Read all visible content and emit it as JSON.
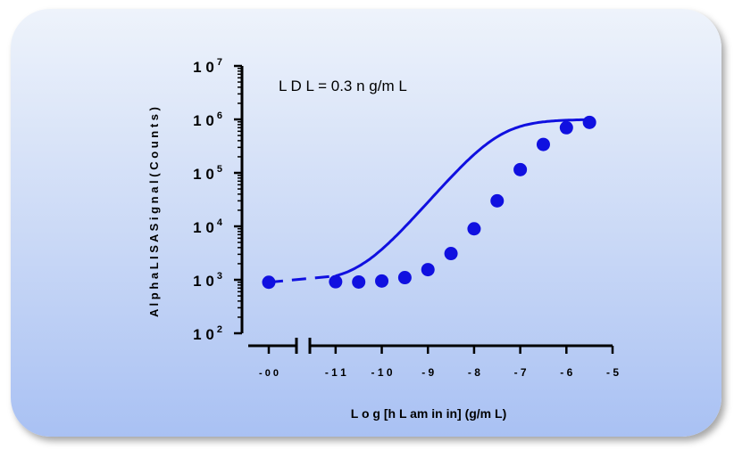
{
  "chart_data": {
    "type": "scatter",
    "title": "",
    "annotation": "L D L = 0.3 n g/m L",
    "xlabel": "L o g [h L am in in] (g/m L)",
    "ylabel": "A l p h a L I S A   S i g n a l  ( C o u n t s )",
    "y_scale": "log",
    "ylim": [
      100,
      10000000
    ],
    "y_ticks": [
      {
        "base": "1 0",
        "exp": "2",
        "value": 100
      },
      {
        "base": "1 0",
        "exp": "3",
        "value": 1000
      },
      {
        "base": "1 0",
        "exp": "4",
        "value": 10000
      },
      {
        "base": "1 0",
        "exp": "5",
        "value": 100000
      },
      {
        "base": "1 0",
        "exp": "6",
        "value": 1000000
      },
      {
        "base": "1 0",
        "exp": "7",
        "value": 10000000
      }
    ],
    "x_break": {
      "left_label": "- 0 0"
    },
    "xlim": [
      -11.5,
      -5
    ],
    "x_ticks": [
      {
        "label": "- 1 1",
        "value": -11
      },
      {
        "label": "- 1 0",
        "value": -10
      },
      {
        "label": "- 9",
        "value": -9
      },
      {
        "label": "- 8",
        "value": -8
      },
      {
        "label": "- 7",
        "value": -7
      },
      {
        "label": "- 6",
        "value": -6
      },
      {
        "label": "- 5",
        "value": -5
      }
    ],
    "zero_point": {
      "y": 900
    },
    "series": [
      {
        "color": "#1010e0",
        "points": [
          {
            "x": -11,
            "y": 920
          },
          {
            "x": -10.5,
            "y": 910
          },
          {
            "x": -10,
            "y": 950
          },
          {
            "x": -9.5,
            "y": 1100
          },
          {
            "x": -9,
            "y": 1550
          },
          {
            "x": -8.5,
            "y": 3100
          },
          {
            "x": -8,
            "y": 9000
          },
          {
            "x": -7.5,
            "y": 30000
          },
          {
            "x": -7,
            "y": 115000
          },
          {
            "x": -6.5,
            "y": 340000
          },
          {
            "x": -6,
            "y": 700000
          },
          {
            "x": -5.5,
            "y": 880000
          }
        ]
      }
    ],
    "fit": {
      "bottom": 900,
      "top": 1000000,
      "log_ec50": -7.45,
      "hill_slope": 1.0
    }
  }
}
